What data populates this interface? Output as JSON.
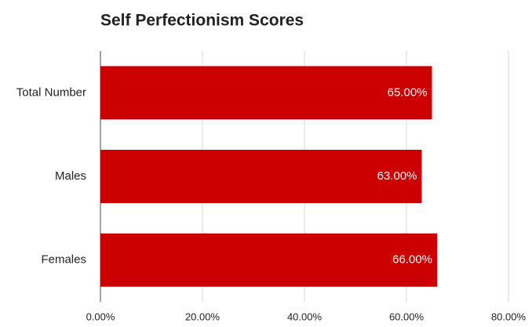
{
  "chart_data": {
    "type": "bar",
    "title": "Self Perfectionism Scores",
    "categories": [
      "Total Number",
      "Males",
      "Females"
    ],
    "values": [
      65,
      63,
      66
    ],
    "value_labels": [
      "65.00%",
      "63.00%",
      "66.00%"
    ],
    "color": "#cc0000",
    "xlim": [
      0,
      80
    ],
    "xticks": [
      {
        "value": 0,
        "label": "0.00%"
      },
      {
        "value": 20,
        "label": "20.00%"
      },
      {
        "value": 40,
        "label": "40.00%"
      },
      {
        "value": 60,
        "label": "60.00%"
      },
      {
        "value": 80,
        "label": "80.00%"
      }
    ],
    "grid": true
  }
}
